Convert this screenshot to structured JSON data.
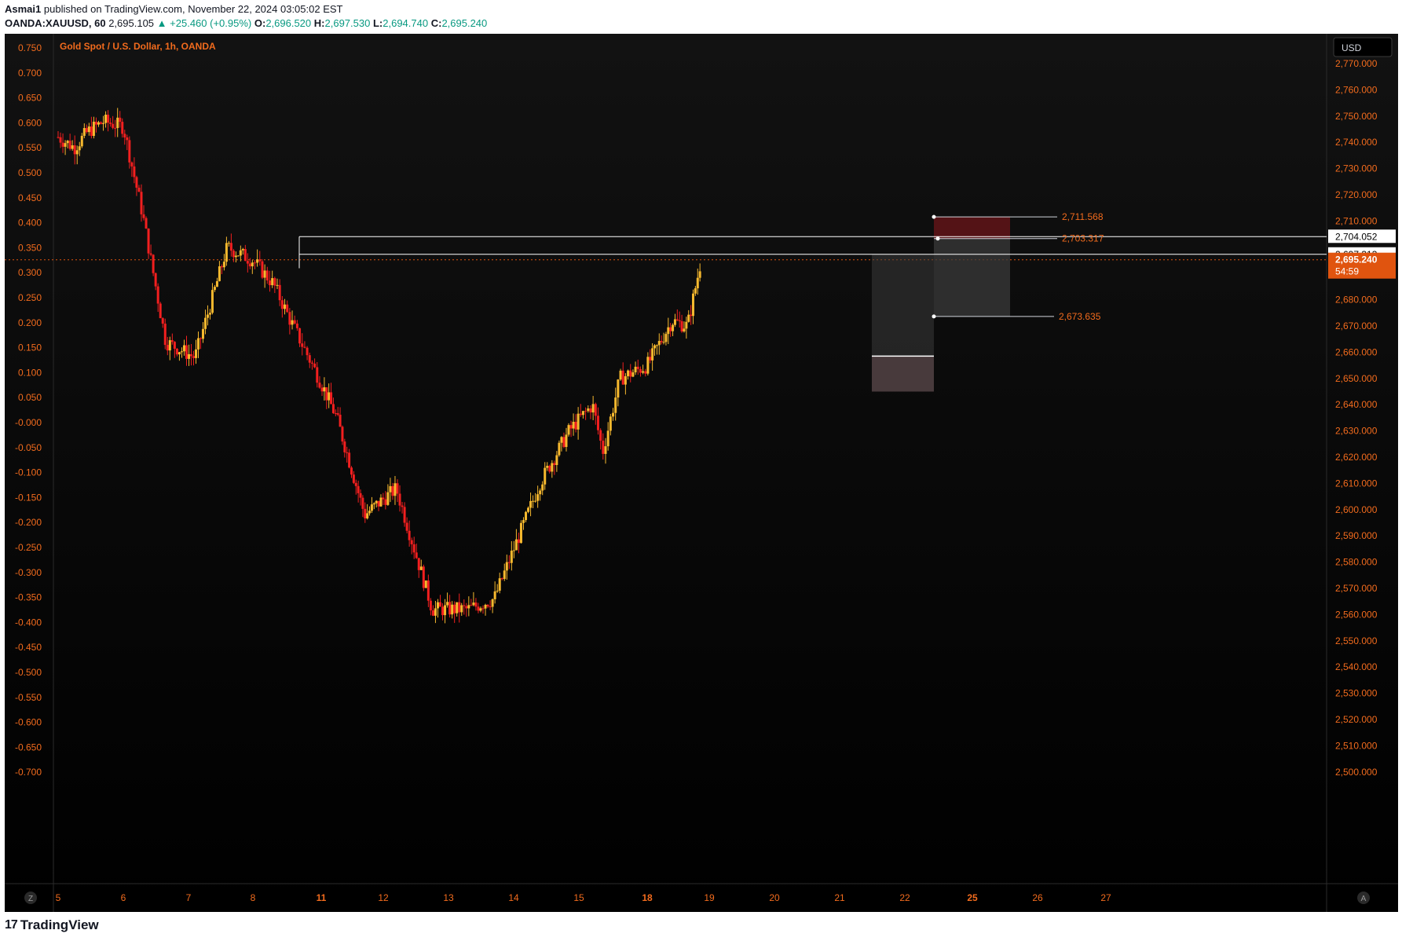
{
  "header": {
    "publisher": "Asmai1",
    "published_text": "published on TradingView.com, November 22, 2024 03:05:02 EST",
    "symbol": "OANDA:XAUUSD, 60",
    "last": "2,695.105",
    "change": "▲ +25.460 (+0.95%)",
    "o_label": "O:",
    "o": "2,696.520",
    "h_label": "H:",
    "h": "2,697.530",
    "l_label": "L:",
    "l": "2,694.740",
    "c_label": "C:",
    "c": "2,695.240"
  },
  "chart_title": "Gold Spot / U.S. Dollar, 1h, OANDA",
  "currency_button": "USD",
  "left_axis_labels": [
    "0.750",
    "0.700",
    "0.650",
    "0.600",
    "0.550",
    "0.500",
    "0.450",
    "0.400",
    "0.350",
    "0.300",
    "0.250",
    "0.200",
    "0.150",
    "0.100",
    "0.050",
    "-0.000",
    "-0.050",
    "-0.100",
    "-0.150",
    "-0.200",
    "-0.250",
    "-0.300",
    "-0.350",
    "-0.400",
    "-0.450",
    "-0.500",
    "-0.550",
    "-0.600",
    "-0.650",
    "-0.700"
  ],
  "right_axis_labels": [
    "2,770.000",
    "2,760.000",
    "2,750.000",
    "2,740.000",
    "2,730.000",
    "2,720.000",
    "2,710.000",
    "2,680.000",
    "2,670.000",
    "2,660.000",
    "2,650.000",
    "2,640.000",
    "2,630.000",
    "2,620.000",
    "2,610.000",
    "2,600.000",
    "2,590.000",
    "2,580.000",
    "2,570.000",
    "2,560.000",
    "2,550.000",
    "2,540.000",
    "2,530.000",
    "2,520.000",
    "2,510.000",
    "2,500.000"
  ],
  "x_labels": [
    {
      "text": "5",
      "bold": false
    },
    {
      "text": "6",
      "bold": false
    },
    {
      "text": "7",
      "bold": false
    },
    {
      "text": "8",
      "bold": false
    },
    {
      "text": "11",
      "bold": true
    },
    {
      "text": "12",
      "bold": false
    },
    {
      "text": "13",
      "bold": false
    },
    {
      "text": "14",
      "bold": false
    },
    {
      "text": "15",
      "bold": false
    },
    {
      "text": "18",
      "bold": true
    },
    {
      "text": "19",
      "bold": false
    },
    {
      "text": "20",
      "bold": false
    },
    {
      "text": "21",
      "bold": false
    },
    {
      "text": "22",
      "bold": false
    },
    {
      "text": "25",
      "bold": true
    },
    {
      "text": "26",
      "bold": false
    },
    {
      "text": "27",
      "bold": false
    }
  ],
  "price_tags": {
    "level_a": "2,704.052",
    "level_b": "2,697.313",
    "current_price": "2,695.240",
    "countdown": "54:59"
  },
  "drawing_labels": {
    "stop": "2,711.568",
    "entry": "2,703.317",
    "target": "2,673.635"
  },
  "corner_buttons": {
    "left": "Z",
    "right": "A"
  },
  "brand": {
    "logo": "17",
    "name": "TradingView"
  },
  "colors": {
    "background": "#000000",
    "bull": "#f7b92e",
    "bear": "#f21f1f",
    "axis_text": "#f26b1d",
    "current_price_bg": "#e0540f",
    "stop_zone": "#5c1417",
    "target_zone": "#3a3a3a"
  },
  "chart_data": {
    "type": "candlestick",
    "title": "Gold Spot / U.S. Dollar, 1h, OANDA",
    "ylim": [
      2497,
      2775
    ],
    "y_secondary_lim": [
      -0.71,
      0.76
    ],
    "current_price": 2695.24,
    "x_dates": [
      "5",
      "6",
      "7",
      "8",
      "11",
      "12",
      "13",
      "14",
      "15",
      "18",
      "19",
      "20",
      "21",
      "22",
      "25",
      "26",
      "27"
    ],
    "path_waypoints": [
      {
        "d": 0.0,
        "price": 2742
      },
      {
        "d": 0.25,
        "price": 2738
      },
      {
        "d": 0.45,
        "price": 2744
      },
      {
        "d": 0.7,
        "price": 2748
      },
      {
        "d": 1.0,
        "price": 2746
      },
      {
        "d": 1.3,
        "price": 2712
      },
      {
        "d": 1.65,
        "price": 2664
      },
      {
        "d": 2.1,
        "price": 2658
      },
      {
        "d": 2.6,
        "price": 2700
      },
      {
        "d": 3.0,
        "price": 2695
      },
      {
        "d": 3.3,
        "price": 2686
      },
      {
        "d": 3.55,
        "price": 2672
      },
      {
        "d": 4.25,
        "price": 2635
      },
      {
        "d": 4.7,
        "price": 2598
      },
      {
        "d": 5.2,
        "price": 2608
      },
      {
        "d": 5.75,
        "price": 2562
      },
      {
        "d": 6.3,
        "price": 2562
      },
      {
        "d": 6.7,
        "price": 2566
      },
      {
        "d": 7.4,
        "price": 2610
      },
      {
        "d": 7.85,
        "price": 2630
      },
      {
        "d": 8.2,
        "price": 2640
      },
      {
        "d": 8.35,
        "price": 2622
      },
      {
        "d": 8.6,
        "price": 2650
      },
      {
        "d": 9.0,
        "price": 2655
      },
      {
        "d": 9.4,
        "price": 2672
      },
      {
        "d": 9.65,
        "price": 2670
      },
      {
        "d": 9.85,
        "price": 2693
      }
    ],
    "position_tool": {
      "stop": 2711.568,
      "entry": 2703.317,
      "target": 2673.635
    }
  }
}
